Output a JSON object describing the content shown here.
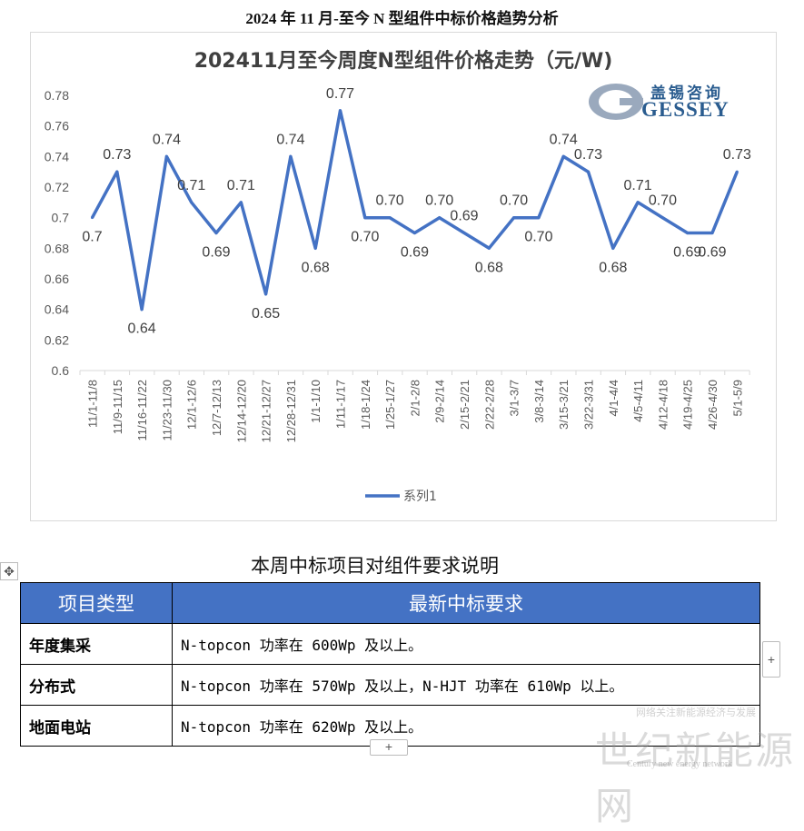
{
  "doc_title": "2024 年 11 月-至今 N 型组件中标价格趋势分析",
  "logo": {
    "cn": "盖锡咨询",
    "en": "GESSEY"
  },
  "chart_data": {
    "type": "line",
    "title": "202411月至今周度N型组件价格走势（元/W)",
    "categories": [
      "11/1-11/8",
      "11/9-11/15",
      "11/16-11/22",
      "11/23-11/30",
      "12/1-12/6",
      "12/7-12/13",
      "12/14-12/20",
      "12/21-12/27",
      "12/28-12/31",
      "1/1-1/10",
      "1/11-1/17",
      "1/18-1/24",
      "1/25-1/27",
      "2/1-2/8",
      "2/9-2/14",
      "2/15-2/21",
      "2/22-2/28",
      "3/1-3/7",
      "3/8-3/14",
      "3/15-3/21",
      "3/22-3/31",
      "4/1-4/4",
      "4/5-4/11",
      "4/12-4/18",
      "4/19-4/25",
      "4/26-4/30",
      "5/1-5/9"
    ],
    "series": [
      {
        "name": "系列1",
        "values": [
          0.7,
          0.73,
          0.64,
          0.74,
          0.71,
          0.69,
          0.71,
          0.65,
          0.74,
          0.68,
          0.77,
          0.7,
          0.7,
          0.69,
          0.7,
          0.69,
          0.68,
          0.7,
          0.7,
          0.74,
          0.73,
          0.68,
          0.71,
          0.7,
          0.69,
          0.69,
          0.73
        ],
        "color": "#4472c4"
      }
    ],
    "data_labels": [
      "0.7",
      "0.73",
      "0.64",
      "0.74",
      "0.71",
      "0.69",
      "0.71",
      "0.65",
      "0.74",
      "0.68",
      "0.77",
      "0.70",
      "0.70",
      "0.69",
      "0.70",
      "0.69",
      "0.68",
      "0.70",
      "0.70",
      "0.74",
      "0.73",
      "0.68",
      "0.71",
      "0.70",
      "0.69",
      "0.69",
      "0.73"
    ],
    "ylim": [
      0.6,
      0.78
    ],
    "yticks": [
      "0.6",
      "0.62",
      "0.64",
      "0.66",
      "0.68",
      "0.7",
      "0.72",
      "0.74",
      "0.76",
      "0.78"
    ],
    "xlabel": "",
    "ylabel": "",
    "grid": false,
    "legend": "bottom"
  },
  "table": {
    "title": "本周中标项目对组件要求说明",
    "headers": [
      "项目类型",
      "最新中标要求"
    ],
    "rows": [
      {
        "type": "年度集采",
        "requirement": "N-topcon 功率在 600Wp 及以上。"
      },
      {
        "type": "分布式",
        "requirement": "N-topcon 功率在 570Wp 及以上，N-HJT 功率在 610Wp 以上。"
      },
      {
        "type": "地面电站",
        "requirement": "N-topcon 功率在 620Wp 及以上。"
      }
    ],
    "move_handle": "✥",
    "add_row": "+",
    "add_col": "+"
  },
  "watermark": {
    "cn": "世纪新能源网",
    "top": "网络关注新能源经济与发展",
    "en": "Century new energy network"
  }
}
